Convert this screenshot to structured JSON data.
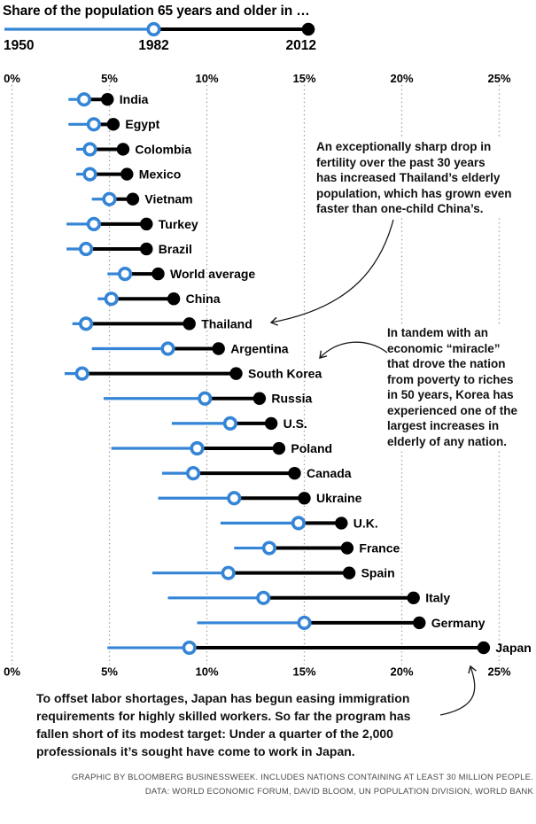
{
  "title": "Share of the population 65 years and older in …",
  "legend": {
    "years": [
      "1950",
      "1982",
      "2012"
    ]
  },
  "chart_data": {
    "type": "dumbbell",
    "series_years": [
      "1950",
      "1982",
      "2012"
    ],
    "unit": "percent of population aged 65 and older",
    "x_ticks": [
      "0%",
      "5%",
      "10%",
      "15%",
      "20%",
      "25%"
    ],
    "x_range_pct": [
      0,
      25
    ],
    "grid": "dotted-vertical",
    "axis_positions": [
      "top",
      "bottom"
    ],
    "countries": [
      {
        "name": "India",
        "values": [
          2.9,
          3.7,
          4.9
        ]
      },
      {
        "name": "Egypt",
        "values": [
          2.9,
          4.2,
          5.2
        ]
      },
      {
        "name": "Colombia",
        "values": [
          3.3,
          4.0,
          5.7
        ]
      },
      {
        "name": "Mexico",
        "values": [
          3.3,
          4.0,
          5.9
        ]
      },
      {
        "name": "Vietnam",
        "values": [
          4.1,
          5.0,
          6.2
        ]
      },
      {
        "name": "Turkey",
        "values": [
          2.8,
          4.2,
          6.9
        ]
      },
      {
        "name": "Brazil",
        "values": [
          2.8,
          3.8,
          6.9
        ]
      },
      {
        "name": "World average",
        "values": [
          4.9,
          5.8,
          7.5
        ]
      },
      {
        "name": "China",
        "values": [
          4.4,
          5.1,
          8.3
        ]
      },
      {
        "name": "Thailand",
        "values": [
          3.1,
          3.8,
          9.1
        ]
      },
      {
        "name": "Argentina",
        "values": [
          4.1,
          8.0,
          10.6
        ]
      },
      {
        "name": "South Korea",
        "values": [
          2.7,
          3.6,
          11.5
        ]
      },
      {
        "name": "Russia",
        "values": [
          4.7,
          9.9,
          12.7
        ]
      },
      {
        "name": "U.S.",
        "values": [
          8.2,
          11.2,
          13.3
        ]
      },
      {
        "name": "Poland",
        "values": [
          5.1,
          9.5,
          13.7
        ]
      },
      {
        "name": "Canada",
        "values": [
          7.7,
          9.3,
          14.5
        ]
      },
      {
        "name": "Ukraine",
        "values": [
          7.5,
          11.4,
          15.0
        ]
      },
      {
        "name": "U.K.",
        "values": [
          10.7,
          14.7,
          16.9
        ]
      },
      {
        "name": "France",
        "values": [
          11.4,
          13.2,
          17.2
        ]
      },
      {
        "name": "Spain",
        "values": [
          7.2,
          11.1,
          17.3
        ]
      },
      {
        "name": "Italy",
        "values": [
          8.0,
          12.9,
          20.6
        ]
      },
      {
        "name": "Germany",
        "values": [
          9.5,
          15.0,
          20.9
        ]
      },
      {
        "name": "Japan",
        "values": [
          4.9,
          9.1,
          24.2
        ]
      }
    ],
    "colors": {
      "early_segment": "#3585d6",
      "late_segment": "#000000",
      "grid": "#999999",
      "marker_open_fill": "#ffffff"
    },
    "legend_note": "blue segment spans 1950–1982 ending in open circle; black segment spans 1982–2012 ending in solid dot"
  },
  "annotations": {
    "thailand": "An exceptionally sharp drop in\nfertility over the past 30 years\nhas increased Thailand’s elderly\npopulation, which has grown even\nfaster than one-child China’s.",
    "korea": "In tandem with an\neconomic “miracle”\nthat drove the nation\nfrom poverty to riches\nin 50 years, Korea has\nexperienced one of the\nlargest increases in\nelderly of any nation.",
    "japan": "To offset labor shortages, Japan has begun easing immigration\nrequirements for highly skilled workers. So far the program has\nfallen short of its modest target: Under a quarter of the 2,000\nprofessionals it’s sought have come to work in Japan."
  },
  "footer": {
    "line1": "GRAPHIC BY BLOOMBERG BUSINESSWEEK. INCLUDES NATIONS CONTAINING AT LEAST 30 MILLION PEOPLE.",
    "line2": "DATA: WORLD ECONOMIC FORUM, DAVID BLOOM, UN POPULATION DIVISION, WORLD BANK"
  }
}
